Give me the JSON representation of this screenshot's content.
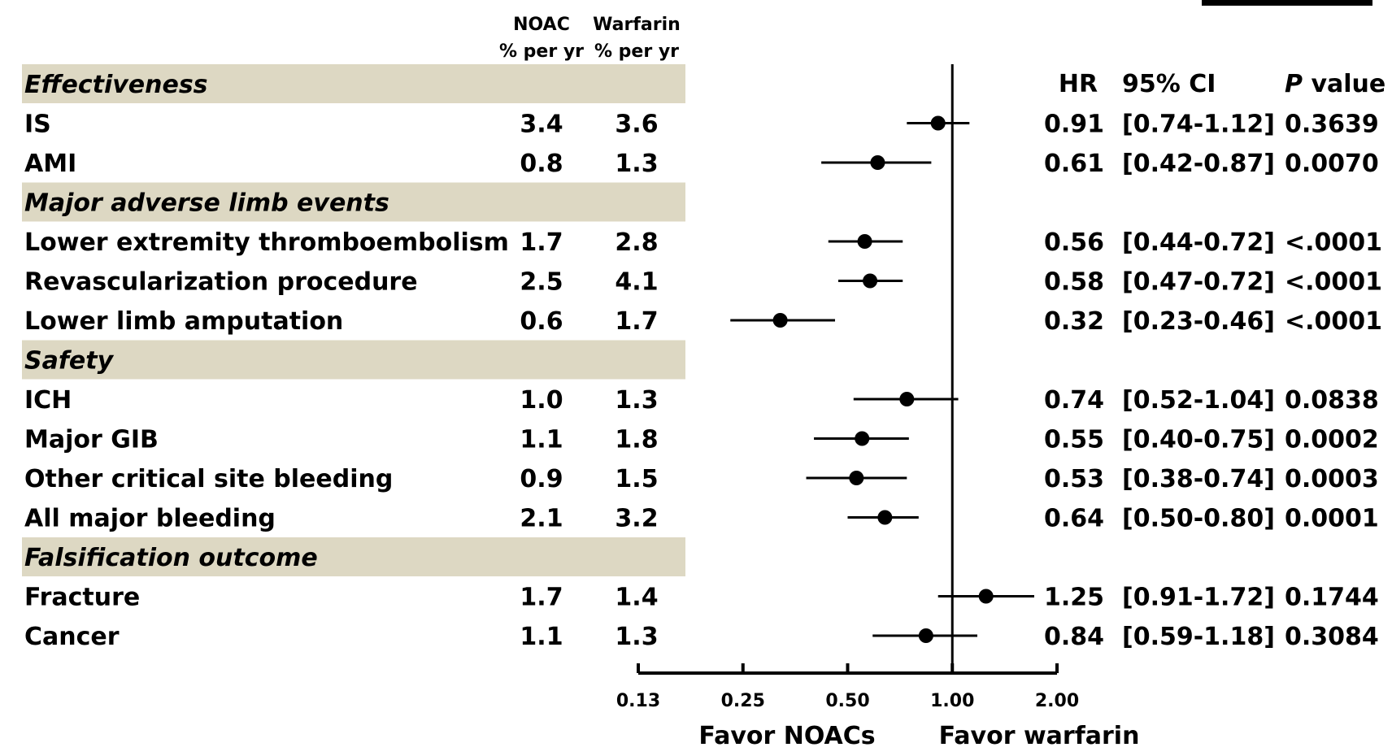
{
  "chart_data": {
    "type": "forest",
    "axis": {
      "scale": "log2",
      "xlim": [
        0.13,
        2.0
      ],
      "ticks": [
        {
          "value": 0.125,
          "label": "0.13"
        },
        {
          "value": 0.25,
          "label": "0.25"
        },
        {
          "value": 0.5,
          "label": "0.50"
        },
        {
          "value": 1.0,
          "label": "1.00"
        },
        {
          "value": 2.0,
          "label": "2.00"
        }
      ],
      "reference_line": 1.0,
      "favor_left": "Favor NOACs",
      "favor_right": "Favor warfarin"
    },
    "column_headers": {
      "noac": [
        "NOAC",
        "% per yr"
      ],
      "warfarin": [
        "Warfarin",
        "% per yr"
      ],
      "hr": "HR",
      "ci": "95% CI",
      "p_italic": "P",
      "p_rest": " value"
    },
    "rows": [
      {
        "kind": "section",
        "label": "Effectiveness"
      },
      {
        "kind": "item",
        "label": "IS",
        "noac": "3.4",
        "warfarin": "3.6",
        "hr": 0.91,
        "lo": 0.74,
        "hi": 1.12,
        "hr_text": "0.91",
        "ci_text": "[0.74-1.12]",
        "p_text": "0.3639"
      },
      {
        "kind": "item",
        "label": "AMI",
        "noac": "0.8",
        "warfarin": "1.3",
        "hr": 0.61,
        "lo": 0.42,
        "hi": 0.87,
        "hr_text": "0.61",
        "ci_text": "[0.42-0.87]",
        "p_text": "0.0070"
      },
      {
        "kind": "section",
        "label": "Major adverse limb events"
      },
      {
        "kind": "item",
        "label": "Lower extremity thromboembolism",
        "noac": "1.7",
        "warfarin": "2.8",
        "hr": 0.56,
        "lo": 0.44,
        "hi": 0.72,
        "hr_text": "0.56",
        "ci_text": "[0.44-0.72]",
        "p_text": "<.0001"
      },
      {
        "kind": "item",
        "label": "Revascularization procedure",
        "noac": "2.5",
        "warfarin": "4.1",
        "hr": 0.58,
        "lo": 0.47,
        "hi": 0.72,
        "hr_text": "0.58",
        "ci_text": "[0.47-0.72]",
        "p_text": "<.0001"
      },
      {
        "kind": "item",
        "label": "Lower limb amputation",
        "noac": "0.6",
        "warfarin": "1.7",
        "hr": 0.32,
        "lo": 0.23,
        "hi": 0.46,
        "hr_text": "0.32",
        "ci_text": "[0.23-0.46]",
        "p_text": "<.0001"
      },
      {
        "kind": "section",
        "label": "Safety"
      },
      {
        "kind": "item",
        "label": "ICH",
        "noac": "1.0",
        "warfarin": "1.3",
        "hr": 0.74,
        "lo": 0.52,
        "hi": 1.04,
        "hr_text": "0.74",
        "ci_text": "[0.52-1.04]",
        "p_text": "0.0838"
      },
      {
        "kind": "item",
        "label": "Major GIB",
        "noac": "1.1",
        "warfarin": "1.8",
        "hr": 0.55,
        "lo": 0.4,
        "hi": 0.75,
        "hr_text": "0.55",
        "ci_text": "[0.40-0.75]",
        "p_text": "0.0002"
      },
      {
        "kind": "item",
        "label": "Other critical site bleeding",
        "noac": "0.9",
        "warfarin": "1.5",
        "hr": 0.53,
        "lo": 0.38,
        "hi": 0.74,
        "hr_text": "0.53",
        "ci_text": "[0.38-0.74]",
        "p_text": "0.0003"
      },
      {
        "kind": "item",
        "label": "All major bleeding",
        "noac": "2.1",
        "warfarin": "3.2",
        "hr": 0.64,
        "lo": 0.5,
        "hi": 0.8,
        "hr_text": "0.64",
        "ci_text": "[0.50-0.80]",
        "p_text": "0.0001"
      },
      {
        "kind": "section",
        "label": "Falsification outcome"
      },
      {
        "kind": "item",
        "label": "Fracture",
        "noac": "1.7",
        "warfarin": "1.4",
        "hr": 1.25,
        "lo": 0.91,
        "hi": 1.72,
        "hr_text": "1.25",
        "ci_text": "[0.91-1.72]",
        "p_text": "0.1744"
      },
      {
        "kind": "item",
        "label": "Cancer",
        "noac": "1.1",
        "warfarin": "1.3",
        "hr": 0.84,
        "lo": 0.59,
        "hi": 1.18,
        "hr_text": "0.84",
        "ci_text": "[0.59-1.18]",
        "p_text": "0.3084"
      }
    ],
    "colors": {
      "section_band": "#ddd8c3",
      "marks": "#000000"
    }
  }
}
